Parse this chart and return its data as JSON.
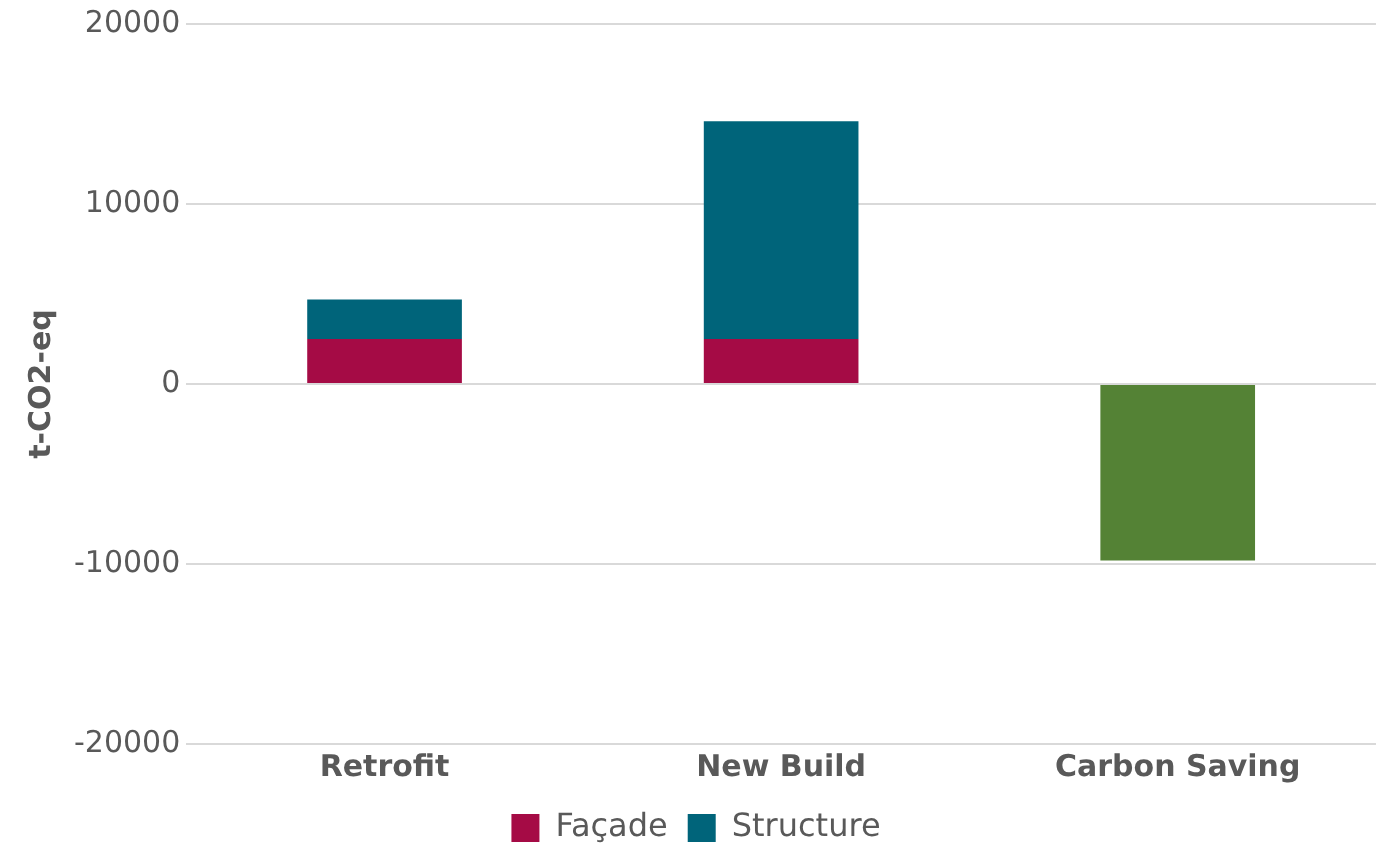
{
  "chart_data": {
    "type": "bar",
    "stacked": true,
    "ylabel": "t-CO2-eq",
    "categories": [
      "Retrofit",
      "New Build",
      "Carbon Saving"
    ],
    "series": [
      {
        "name": "Façade",
        "color": "#a50b45",
        "values": [
          2500,
          2500,
          null
        ]
      },
      {
        "name": "Structure",
        "color": "#00647a",
        "values": [
          2200,
          12100,
          null
        ]
      },
      {
        "color": "#548235",
        "values": [
          null,
          null,
          -9800
        ]
      }
    ],
    "ylim": [
      -20000,
      20000
    ],
    "yticks": [
      -20000,
      -10000,
      0,
      10000,
      20000
    ],
    "grid": "y",
    "legend": "bottom"
  }
}
